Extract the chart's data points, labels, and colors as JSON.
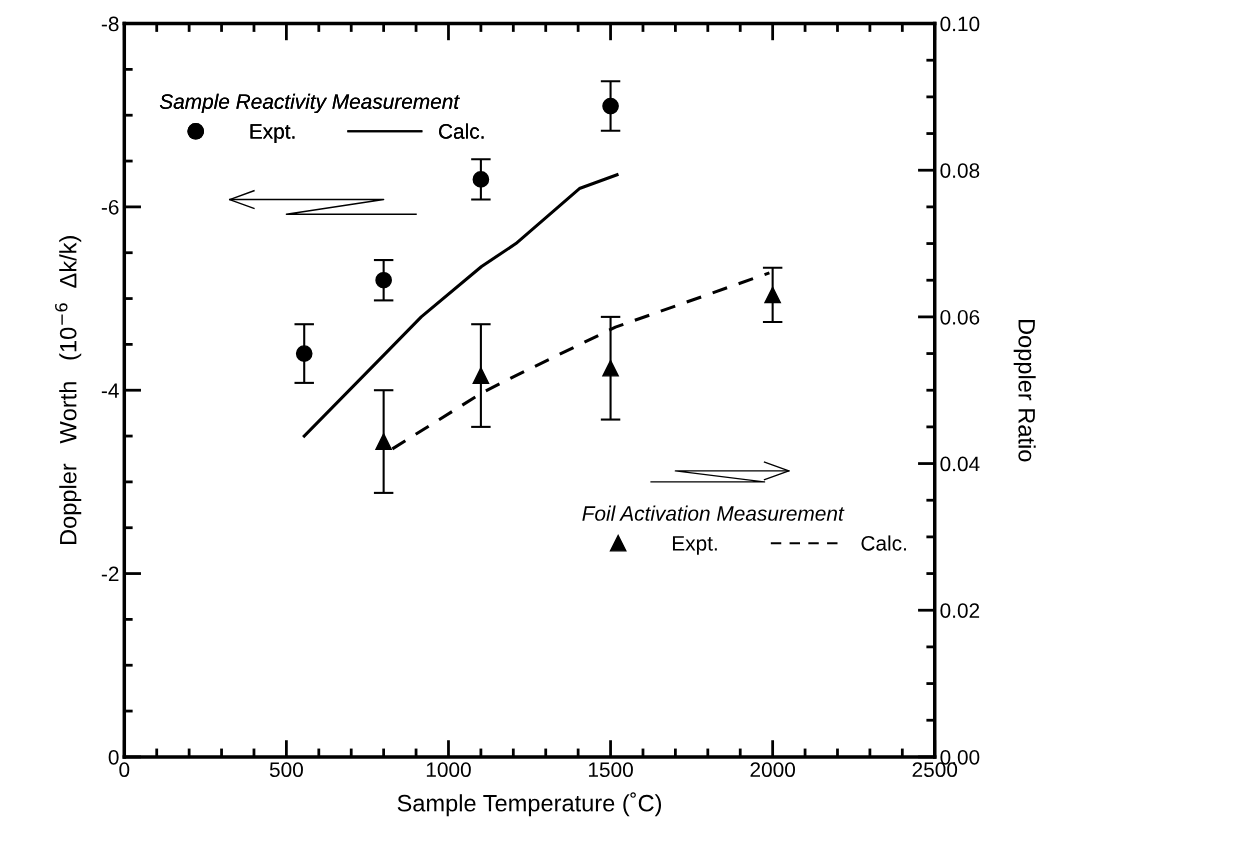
{
  "chart_data": {
    "type": "scatter",
    "xlabel": "Sample Temperature (˚C)",
    "ylabel": "Doppler   Worth   (10$^{−6}$  Δk/k)",
    "y2label": "Doppler Ratio",
    "xlim": [
      0,
      2500
    ],
    "xticks": [
      0,
      500,
      1000,
      1500,
      2000,
      2500
    ],
    "ylim": [
      0,
      -8
    ],
    "yticks": [
      -8,
      -6,
      -4,
      -2,
      0
    ],
    "y2lim": [
      0,
      0.1
    ],
    "y2ticks": [
      {
        "value": 0,
        "label": "0.00"
      },
      0.02,
      0.04,
      0.06,
      0.08,
      {
        "value": 0.1,
        "label": "0.10"
      }
    ],
    "legend": "top left",
    "grid": false,
    "annotations": [
      "Sample Reactivity Measurement",
      "Foil Activation Measurement"
    ],
    "series": [
      {
        "name": "Expt.",
        "marker": "circle",
        "color": "#000000",
        "x": [
          555,
          800,
          1100,
          1500
        ],
        "values": [
          -4.4,
          -5.2,
          -6.3,
          -7.1
        ],
        "errors": [
          0.32,
          0.22,
          0.22,
          0.27
        ]
      },
      {
        "name": "Calc.",
        "type": "line",
        "line_style": "solid",
        "color": "#000000",
        "x": [
          555,
          805,
          916,
          1102,
          1208,
          1404,
          1520
        ],
        "values": [
          -3.5,
          -4.4,
          -4.8,
          -5.35,
          -5.6,
          -6.2,
          -6.35
        ]
      },
      {
        "name": "Expt.",
        "marker": "triangle",
        "axis": "y2",
        "color": "#000000",
        "x": [
          800,
          1100,
          1500,
          2000
        ],
        "values": [
          0.043,
          0.052,
          0.053,
          0.063
        ],
        "errors": [
          0.007,
          0.007,
          0.007,
          0.0037
        ]
      },
      {
        "name": "Calc.",
        "type": "line",
        "line_style": "dashed",
        "axis": "y2",
        "color": "#000000",
        "x": [
          827,
          1102,
          1208,
          1515,
          1990
        ],
        "values": [
          0.042,
          0.0496,
          0.052,
          0.0586,
          0.066
        ]
      }
    ]
  }
}
